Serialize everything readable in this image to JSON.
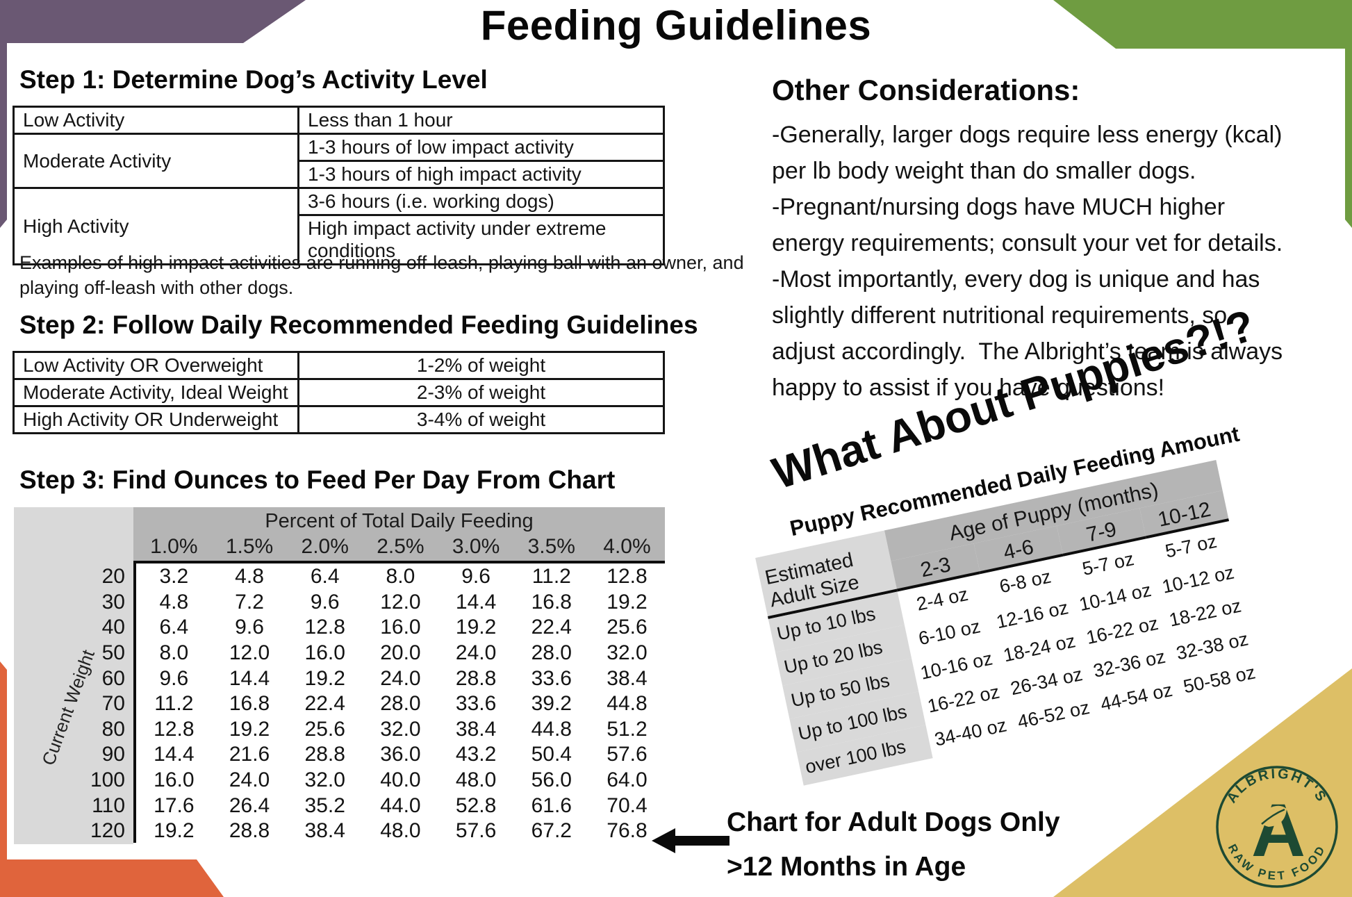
{
  "title": "Feeding Guidelines",
  "step1": {
    "heading": "Step 1: Determine Dog’s Activity Level",
    "rows": [
      {
        "level": "Low Activity",
        "details": [
          "Less than 1 hour"
        ]
      },
      {
        "level": "Moderate Activity",
        "details": [
          "1-3 hours of low impact activity",
          "1-3 hours of high impact activity"
        ]
      },
      {
        "level": "High Activity",
        "details": [
          "3-6 hours (i.e. working dogs)",
          "High impact activity under extreme conditions"
        ]
      }
    ],
    "footnote_lines": [
      "Examples of high impact activities are running off-leash, playing ball with an owner, and",
      "playing off-leash with other dogs."
    ]
  },
  "step2": {
    "heading": "Step 2: Follow Daily Recommended Feeding Guidelines",
    "rows": [
      {
        "condition": "Low Activity OR Overweight",
        "amount": "1-2% of weight"
      },
      {
        "condition": "Moderate Activity, Ideal Weight",
        "amount": "2-3% of weight"
      },
      {
        "condition": "High Activity OR Underweight",
        "amount": "3-4% of weight"
      }
    ]
  },
  "step3": {
    "heading": "Step 3: Find Ounces to Feed Per Day From Chart",
    "column_group_label": "Percent of Total Daily Feeding",
    "row_group_label": "Current Weight",
    "percent_columns": [
      "1.0%",
      "1.5%",
      "2.0%",
      "2.5%",
      "3.0%",
      "3.5%",
      "4.0%"
    ],
    "weights": [
      "20",
      "30",
      "40",
      "50",
      "60",
      "70",
      "80",
      "90",
      "100",
      "110",
      "120"
    ],
    "ounces": [
      [
        "3.2",
        "4.8",
        "6.4",
        "8.0",
        "9.6",
        "11.2",
        "12.8"
      ],
      [
        "4.8",
        "7.2",
        "9.6",
        "12.0",
        "14.4",
        "16.8",
        "19.2"
      ],
      [
        "6.4",
        "9.6",
        "12.8",
        "16.0",
        "19.2",
        "22.4",
        "25.6"
      ],
      [
        "8.0",
        "12.0",
        "16.0",
        "20.0",
        "24.0",
        "28.0",
        "32.0"
      ],
      [
        "9.6",
        "14.4",
        "19.2",
        "24.0",
        "28.8",
        "33.6",
        "38.4"
      ],
      [
        "11.2",
        "16.8",
        "22.4",
        "28.0",
        "33.6",
        "39.2",
        "44.8"
      ],
      [
        "12.8",
        "19.2",
        "25.6",
        "32.0",
        "38.4",
        "44.8",
        "51.2"
      ],
      [
        "14.4",
        "21.6",
        "28.8",
        "36.0",
        "43.2",
        "50.4",
        "57.6"
      ],
      [
        "16.0",
        "24.0",
        "32.0",
        "40.0",
        "48.0",
        "56.0",
        "64.0"
      ],
      [
        "17.6",
        "26.4",
        "35.2",
        "44.0",
        "52.8",
        "61.6",
        "70.4"
      ],
      [
        "19.2",
        "28.8",
        "38.4",
        "48.0",
        "57.6",
        "67.2",
        "76.8"
      ]
    ]
  },
  "other_considerations": {
    "heading": "Other Considerations:",
    "lines": [
      "-Generally, larger dogs require less energy (kcal)",
      "per lb body weight than do smaller dogs.",
      "-Pregnant/nursing dogs have MUCH higher",
      "energy requirements; consult your vet for details.",
      "-Most importantly, every dog is unique and has",
      "slightly different nutritional requirements, so",
      "adjust accordingly.  The Albright’s team is always",
      "happy to assist if you have questions!"
    ]
  },
  "puppies": {
    "title": "What About Puppies?!?",
    "subtitle": "Puppy Recommended Daily Feeding Amount",
    "age_group_label": "Age of Puppy (months)",
    "size_label_lines": [
      "Estimated",
      "Adult Size"
    ],
    "age_columns": [
      "2-3",
      "4-6",
      "7-9",
      "10-12"
    ],
    "rows": [
      {
        "size": "Up to 10 lbs",
        "amounts": [
          "2-4 oz",
          "6-8 oz",
          "5-7 oz",
          "5-7 oz"
        ]
      },
      {
        "size": "Up to 20 lbs",
        "amounts": [
          "6-10 oz",
          "12-16 oz",
          "10-14 oz",
          "10-12 oz"
        ]
      },
      {
        "size": "Up to 50 lbs",
        "amounts": [
          "10-16 oz",
          "18-24 oz",
          "16-22 oz",
          "18-22 oz"
        ]
      },
      {
        "size": "Up to 100 lbs",
        "amounts": [
          "16-22 oz",
          "26-34 oz",
          "32-36 oz",
          "32-38 oz"
        ]
      },
      {
        "size": "over 100 lbs",
        "amounts": [
          "34-40 oz",
          "46-52 oz",
          "44-54 oz",
          "50-58 oz"
        ]
      }
    ]
  },
  "adult_note": {
    "line1": "Chart for Adult Dogs Only",
    "line2": ">12 Months in Age"
  },
  "logo": {
    "arc_top": "ALBRIGHT'S",
    "arc_bottom": "RAW PET FOOD",
    "monogram": "A"
  },
  "colors": {
    "corner_purple": "#6a5873",
    "corner_green": "#6f9c41",
    "corner_orange": "#e0643c",
    "corner_gold": "#ddbf66",
    "logo_green": "#1d4a33",
    "table_header_gray": "#b5b5b5",
    "table_light_gray": "#d9d9d9"
  }
}
